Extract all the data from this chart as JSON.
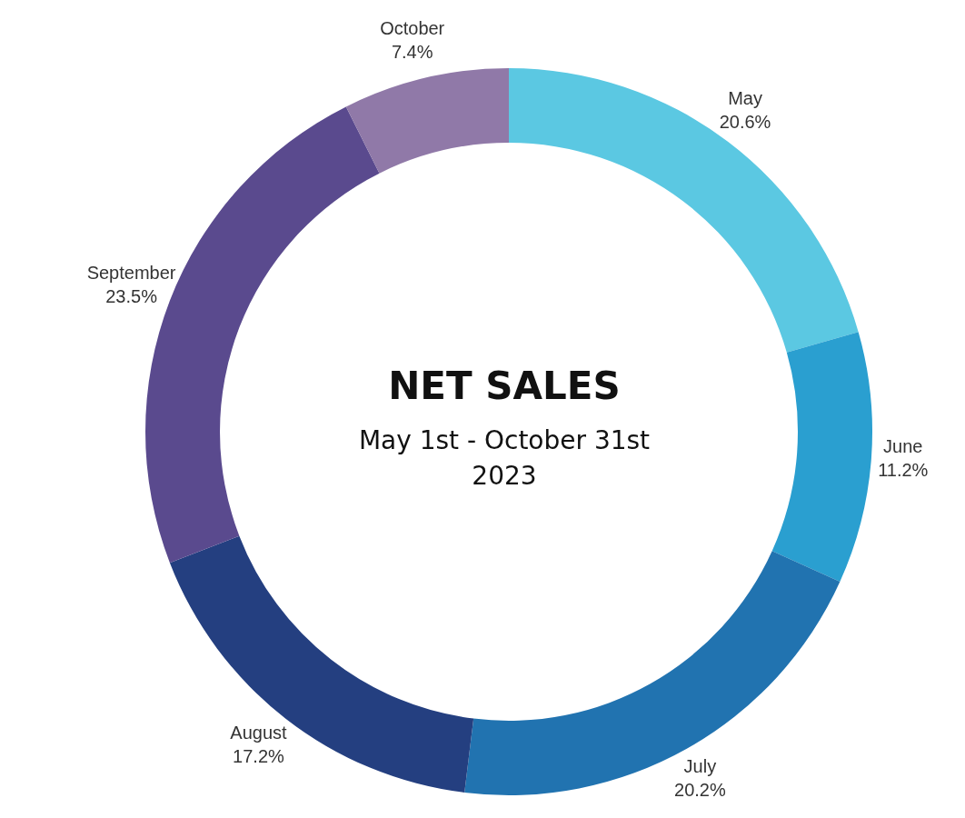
{
  "chart_data": {
    "type": "donut",
    "title": "NET SALES",
    "subtitle": "May 1st - October 31st 2023",
    "categories": [
      "May",
      "June",
      "July",
      "August",
      "September",
      "October"
    ],
    "values": [
      20.6,
      11.2,
      20.2,
      17.2,
      23.5,
      7.4
    ],
    "value_labels": [
      "20.6%",
      "11.2%",
      "20.2%",
      "17.2%",
      "23.5%",
      "7.4%"
    ],
    "colors": [
      "#5bc8e2",
      "#2a9fd0",
      "#2173b0",
      "#243f80",
      "#5a4a8e",
      "#9079a8"
    ],
    "legend": false
  }
}
